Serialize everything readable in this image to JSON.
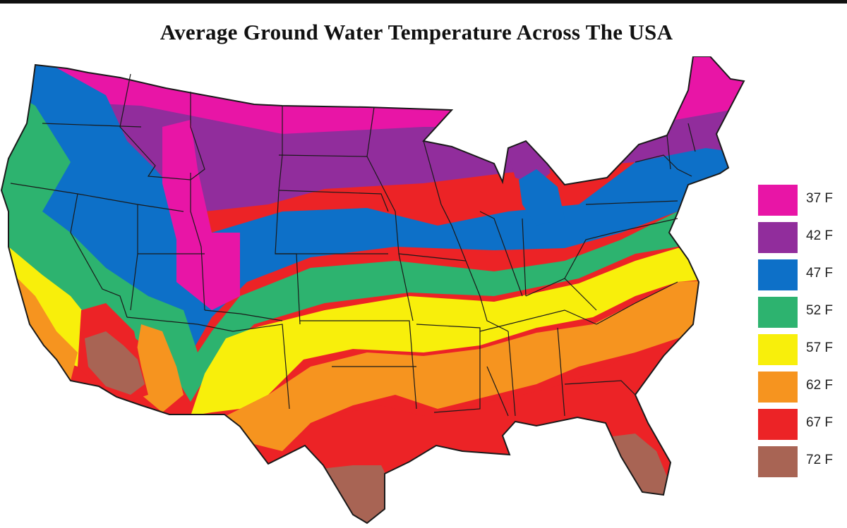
{
  "title": "Average Ground Water Temperature Across The USA",
  "legend": {
    "items": [
      {
        "label": "37 F",
        "color": "#e815a6"
      },
      {
        "label": "42 F",
        "color": "#912d9c"
      },
      {
        "label": "47 F",
        "color": "#0d70c8"
      },
      {
        "label": "52 F",
        "color": "#2db36f"
      },
      {
        "label": "57 F",
        "color": "#f8ef0b"
      },
      {
        "label": "62 F",
        "color": "#f6941f"
      },
      {
        "label": "67 F",
        "color": "#ec2326"
      },
      {
        "label": "72 F",
        "color": "#a86454"
      }
    ]
  },
  "map_colors": {
    "outline": "#1a1a1a"
  }
}
